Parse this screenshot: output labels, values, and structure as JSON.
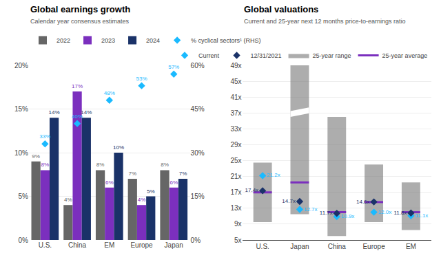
{
  "chart_data": [
    {
      "type": "bar",
      "title": "Global earnings growth",
      "subtitle": "Calendar year consensus estimates",
      "categories": [
        "U.S.",
        "China",
        "EM",
        "Europe",
        "Japan"
      ],
      "series": [
        {
          "name": "2022",
          "type": "bar",
          "color": "#666666",
          "values": [
            9,
            4,
            8,
            7,
            8
          ],
          "value_labels": [
            "9%",
            "4%",
            "8%",
            "7%",
            "8%"
          ]
        },
        {
          "name": "2023",
          "type": "bar",
          "color": "#7b2fbe",
          "values": [
            8,
            17,
            6,
            4,
            6
          ],
          "value_labels": [
            "8%",
            "17%",
            "6%",
            "4%",
            "6%"
          ]
        },
        {
          "name": "2024",
          "type": "bar",
          "color": "#1a3268",
          "values": [
            14,
            14,
            10,
            5,
            7
          ],
          "value_labels": [
            "14%",
            "14%",
            "10%",
            "5%",
            "7%"
          ]
        },
        {
          "name": "% cyclical sectors¹ (RHS)",
          "type": "scatter",
          "marker": "diamond",
          "color": "#1abaff",
          "axis": "y2",
          "values": [
            33,
            40,
            48,
            53,
            57
          ],
          "value_labels": [
            "33%",
            "40%",
            "48%",
            "53%",
            "57%"
          ]
        }
      ],
      "ylim": [
        0,
        20
      ],
      "yticks": [
        {
          "value": 0,
          "label": "0%"
        },
        {
          "value": 5,
          "label": "5%"
        },
        {
          "value": 10,
          "label": "10%"
        },
        {
          "value": 15,
          "label": "15%"
        },
        {
          "value": 20,
          "label": "20%"
        }
      ],
      "y2lim": [
        0,
        60
      ],
      "y2ticks": [
        {
          "value": 0,
          "label": "0%"
        },
        {
          "value": 15,
          "label": "15%"
        },
        {
          "value": 30,
          "label": "30%"
        },
        {
          "value": 45,
          "label": "45%"
        },
        {
          "value": 60,
          "label": "60%"
        }
      ],
      "grid": true,
      "legend": "upper left",
      "data_labels": true
    },
    {
      "type": "range",
      "title": "Global valuations",
      "subtitle": "Current and 25-year next 12 months price-to-earnings ratio",
      "categories": [
        "U.S.",
        "Japan",
        "China",
        "Europe",
        "EM"
      ],
      "series": [
        {
          "name": "Current",
          "type": "scatter",
          "marker": "diamond",
          "color": "#1abaff",
          "values": [
            21.2,
            12.7,
            10.9,
            12.0,
            11.1
          ],
          "value_labels": [
            "21.2x",
            "12.7x",
            "10.9x",
            "12.0x",
            "11.1x"
          ]
        },
        {
          "name": "12/31/2021",
          "type": "scatter",
          "marker": "diamond",
          "color": "#1a3268",
          "values": [
            17.4,
            14.7,
            11.7,
            14.6,
            11.8
          ],
          "value_labels": [
            "17.4x",
            "14.7x",
            "11.7x",
            "14.6x",
            "11.8x"
          ]
        },
        {
          "name": "25-year range",
          "type": "range",
          "color": "#767676",
          "low": [
            9.5,
            11.5,
            6.0,
            9.5,
            7.5
          ],
          "high": [
            24.5,
            49.0,
            36.0,
            24.0,
            19.5
          ],
          "break": [
            null,
            36.0,
            null,
            null,
            null
          ]
        },
        {
          "name": "25-year average",
          "type": "line",
          "color": "#7b2fbe",
          "values": [
            17.0,
            19.5,
            12.0,
            14.55,
            12.0
          ]
        }
      ],
      "ylim": [
        5,
        49
      ],
      "yticks": [
        {
          "value": 5,
          "label": "5x"
        },
        {
          "value": 9,
          "label": "9x"
        },
        {
          "value": 13,
          "label": "13x"
        },
        {
          "value": 17,
          "label": "17x"
        },
        {
          "value": 21,
          "label": "21x"
        },
        {
          "value": 25,
          "label": "25x"
        },
        {
          "value": 29,
          "label": "29x"
        },
        {
          "value": 33,
          "label": "33x"
        },
        {
          "value": 37,
          "label": "37x"
        },
        {
          "value": 41,
          "label": "41x"
        },
        {
          "value": 45,
          "label": "45x"
        },
        {
          "value": 49,
          "label": "49x"
        }
      ],
      "grid": true,
      "legend": "upper right",
      "data_labels": true
    }
  ]
}
